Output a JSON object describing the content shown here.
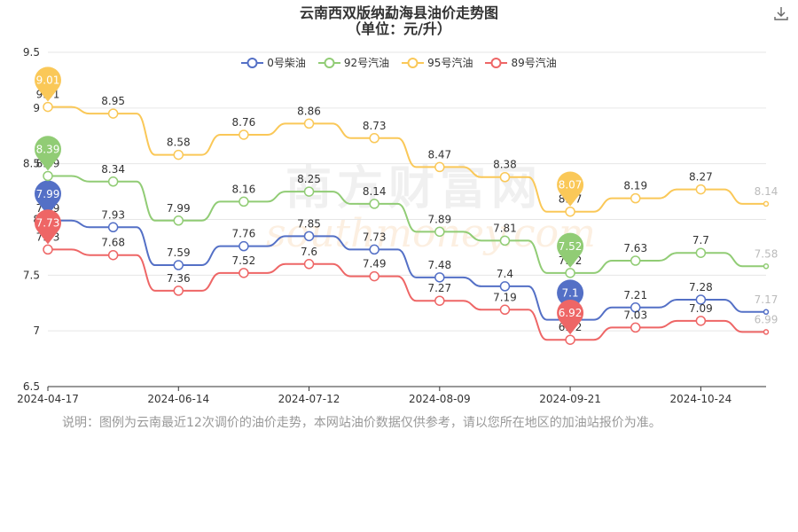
{
  "title": "云南西双版纳勐海县油价走势图",
  "subtitle": "（单位：元/升）",
  "note": "说明：图例为云南最近12次调价的油价走势，本网站油价数据仅供参考，请以您所在地区的加油站报价为准。",
  "watermark": {
    "cn": "南方财富网",
    "en": "southmoney.com"
  },
  "toolbar": {
    "download_icon": "download-icon"
  },
  "colors": {
    "axis": "#333333",
    "grid": "#e6e6e6",
    "label": "#333333",
    "label_faded": "#bbbbbb"
  },
  "chart_data": {
    "type": "line",
    "x": [
      "2024-04-17",
      "2024-05-17",
      "2024-06-14",
      "2024-06-28",
      "2024-07-12",
      "2024-07-26",
      "2024-08-09",
      "2024-08-23",
      "2024-09-21",
      "2024-10-08",
      "2024-10-24",
      "2024-11-06"
    ],
    "x_tick_labels": [
      "2024-04-17",
      "2024-06-14",
      "2024-07-12",
      "2024-08-09",
      "2024-09-21",
      "2024-10-24"
    ],
    "x_tick_indices": [
      0,
      2,
      4,
      6,
      8,
      10
    ],
    "y_ticks": [
      6.5,
      7,
      7.5,
      8,
      8.5,
      9,
      9.5
    ],
    "y_tick_labels": [
      "6.5",
      "7",
      "7.5",
      "8",
      "8.5",
      "9",
      "9.5"
    ],
    "ylim": [
      6.5,
      9.5
    ],
    "grid": true,
    "legend_position": "top",
    "series": [
      {
        "name": "0号柴油",
        "color": "#5470c6",
        "values": [
          7.99,
          7.93,
          7.59,
          7.76,
          7.85,
          7.73,
          7.48,
          7.4,
          7.1,
          7.21,
          7.28,
          7.17
        ],
        "max_index": 0,
        "min_index": 8
      },
      {
        "name": "92号汽油",
        "color": "#91cc75",
        "values": [
          8.39,
          8.34,
          7.99,
          8.16,
          8.25,
          8.14,
          7.89,
          7.81,
          7.52,
          7.63,
          7.7,
          7.58
        ],
        "max_index": 0,
        "min_index": 8
      },
      {
        "name": "95号汽油",
        "color": "#fac858",
        "values": [
          9.01,
          8.95,
          8.58,
          8.76,
          8.86,
          8.73,
          8.47,
          8.38,
          8.07,
          8.19,
          8.27,
          8.14
        ],
        "max_index": 0,
        "min_index": 8
      },
      {
        "name": "89号汽油",
        "color": "#ee6666",
        "values": [
          7.73,
          7.68,
          7.36,
          7.52,
          7.6,
          7.49,
          7.27,
          7.19,
          6.92,
          7.03,
          7.09,
          6.99
        ],
        "max_index": 0,
        "min_index": 8
      }
    ]
  }
}
